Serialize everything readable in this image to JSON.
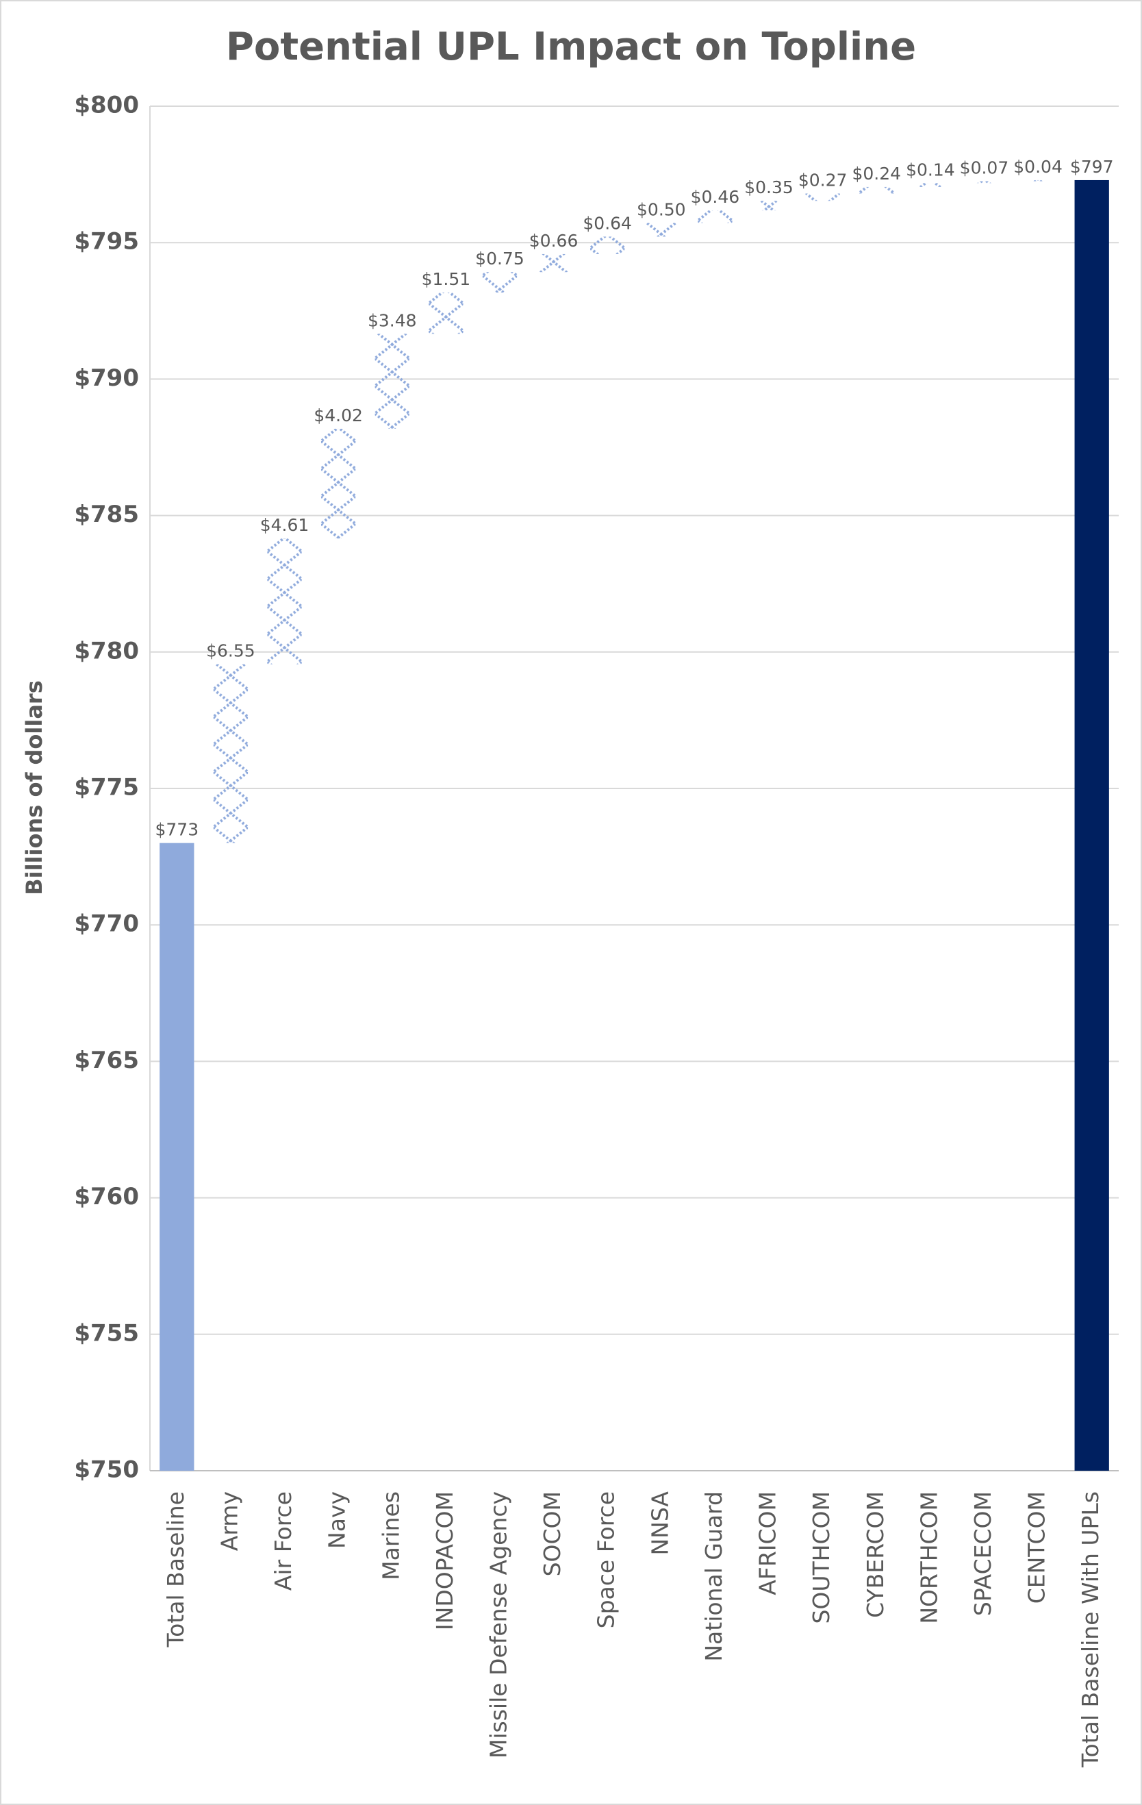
{
  "chart_data": {
    "type": "waterfall",
    "title": "Potential UPL Impact on Topline",
    "y_label": "Billions of dollars",
    "categories": [
      "Total Baseline",
      "Army",
      "Air Force",
      "Navy",
      "Marines",
      "INDOPACOM",
      "Missile Defense Agency",
      "SOCOM",
      "Space Force",
      "NNSA",
      "National Guard",
      "AFRICOM",
      "SOUTHCOM",
      "CYBERCOM",
      "NORTHCOM",
      "SPACECOM",
      "CENTCOM",
      "Total Baseline With UPLs"
    ],
    "values": [
      773,
      6.55,
      4.61,
      4.02,
      3.48,
      1.51,
      0.75,
      0.66,
      0.64,
      0.5,
      0.46,
      0.35,
      0.27,
      0.24,
      0.14,
      0.07,
      0.04,
      797.29
    ],
    "value_labels": [
      "$773",
      "$6.55",
      "$4.61",
      "$4.02",
      "$3.48",
      "$1.51",
      "$0.75",
      "$0.66",
      "$0.64",
      "$0.50",
      "$0.46",
      "$0.35",
      "$0.27",
      "$0.24",
      "$0.14",
      "$0.07",
      "$0.04",
      "$797"
    ],
    "total_indices": [
      0,
      17
    ],
    "colors": {
      "baseline": "#8faadc",
      "increase": "#8faadc",
      "total": "#002060"
    },
    "ylim": [
      750,
      800
    ],
    "yticks": [
      {
        "value": 750,
        "label": "$750"
      },
      {
        "value": 755,
        "label": "$755"
      },
      {
        "value": 760,
        "label": "$760"
      },
      {
        "value": 765,
        "label": "$765"
      },
      {
        "value": 770,
        "label": "$770"
      },
      {
        "value": 775,
        "label": "$775"
      },
      {
        "value": 780,
        "label": "$780"
      },
      {
        "value": 785,
        "label": "$785"
      },
      {
        "value": 790,
        "label": "$790"
      },
      {
        "value": 795,
        "label": "$795"
      },
      {
        "value": 800,
        "label": "$800"
      }
    ],
    "grid": true
  }
}
